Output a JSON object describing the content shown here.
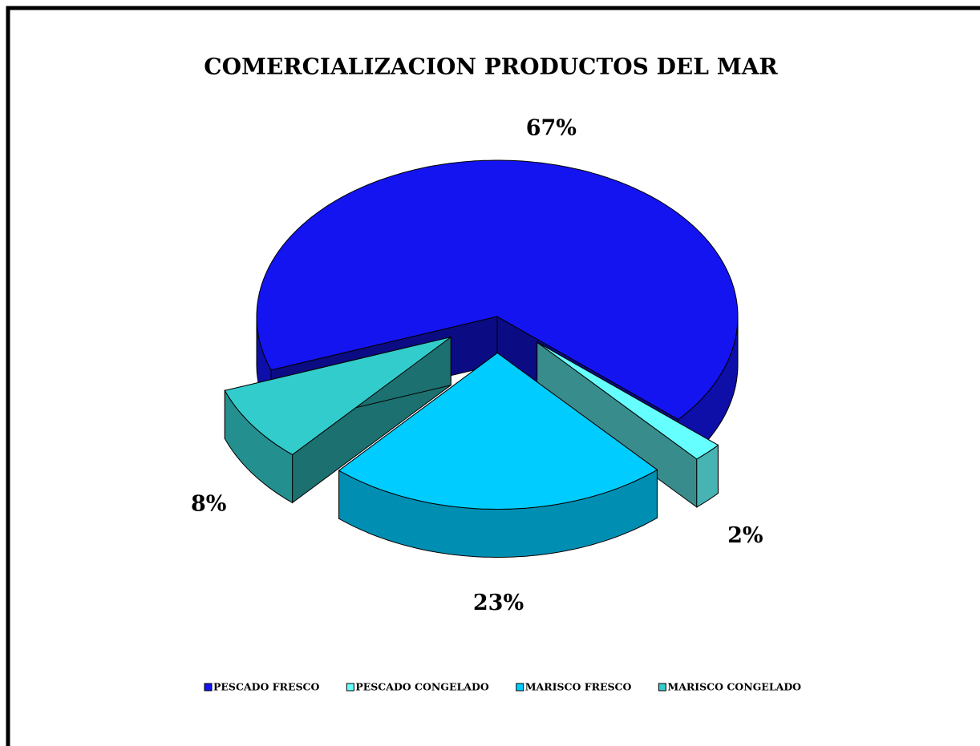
{
  "chart_data": {
    "type": "pie3d",
    "title": "COMERCIALIZACION  PRODUCTOS DEL MAR",
    "categories": [
      "PESCADO FRESCO",
      "PESCADO CONGELADO",
      "MARISCO FRESCO",
      "MARISCO CONGELADO"
    ],
    "values": [
      67,
      2,
      23,
      8
    ],
    "value_labels": [
      "67%",
      "2%",
      "23%",
      "8%"
    ],
    "colors": [
      "#1414f0",
      "#66ffff",
      "#00ccff",
      "#33cccc"
    ],
    "legend": "bottom"
  }
}
